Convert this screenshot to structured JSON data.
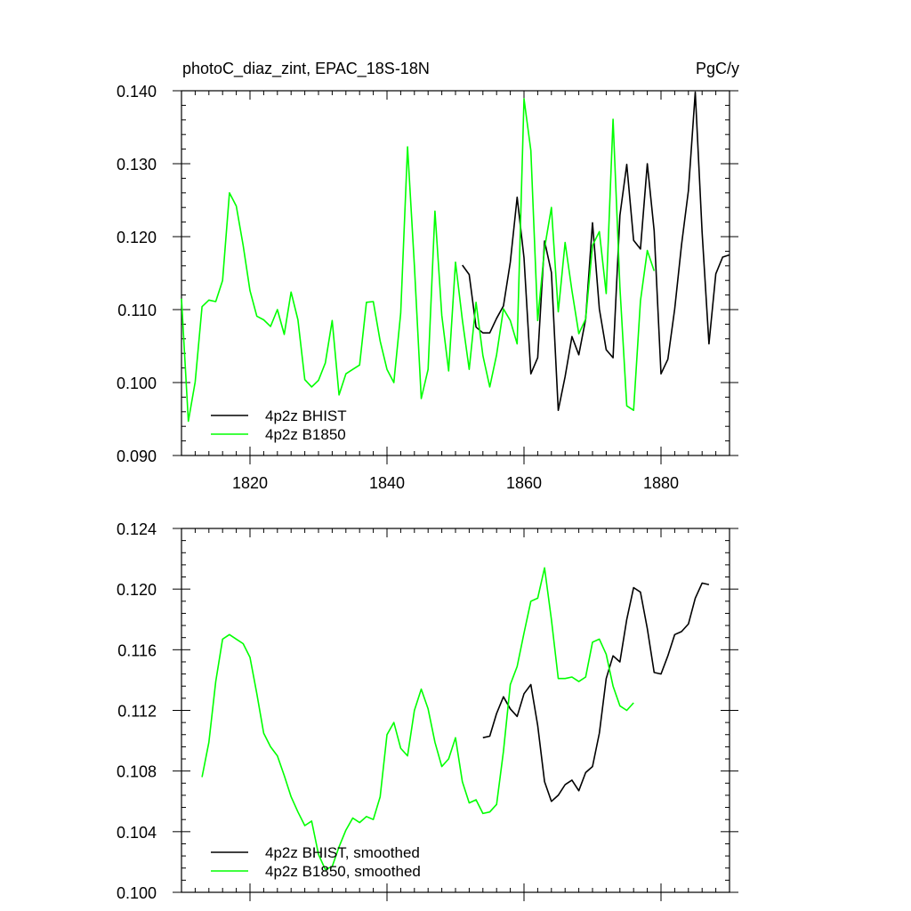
{
  "chart_data": [
    {
      "type": "line",
      "title_left": "photoC_diaz_zint, EPAC_18S-18N",
      "title_right": "PgC/y",
      "xlim": [
        1810,
        1890
      ],
      "ylim": [
        0.09,
        0.14
      ],
      "xticks": [
        1820,
        1840,
        1860,
        1880
      ],
      "yticks": [
        0.09,
        0.1,
        0.11,
        0.12,
        0.13,
        0.14
      ],
      "ytick_labels": [
        "0.090",
        "0.100",
        "0.110",
        "0.120",
        "0.130",
        "0.140"
      ],
      "show_xtick_labels": true,
      "legend_position": "bottom-left",
      "series": [
        {
          "name": "4p2z BHIST",
          "color": "#000000",
          "x0": 1851,
          "values": [
            0.1161,
            0.1148,
            0.1076,
            0.1068,
            0.1068,
            0.1088,
            0.1105,
            0.1165,
            0.1254,
            0.1171,
            0.1012,
            0.1034,
            0.1194,
            0.1151,
            0.0962,
            0.1008,
            0.1063,
            0.1038,
            0.1087,
            0.1219,
            0.1101,
            0.1045,
            0.1034,
            0.1229,
            0.1299,
            0.1195,
            0.1183,
            0.13,
            0.1208,
            0.1012,
            0.1032,
            0.1101,
            0.1189,
            0.1263,
            0.1398,
            0.1206,
            0.1053,
            0.1149,
            0.1172,
            0.1175
          ]
        },
        {
          "name": "4p2z B1850",
          "color": "#00ff00",
          "x0": 1810,
          "values": [
            0.1115,
            0.0947,
            0.1001,
            0.1104,
            0.1113,
            0.1111,
            0.114,
            0.126,
            0.1242,
            0.1188,
            0.1126,
            0.1091,
            0.1086,
            0.1077,
            0.11,
            0.1066,
            0.1124,
            0.1086,
            0.1004,
            0.0994,
            0.1003,
            0.1027,
            0.1085,
            0.0983,
            0.1012,
            0.1018,
            0.1024,
            0.111,
            0.1111,
            0.1057,
            0.1018,
            0.1,
            0.1095,
            0.1323,
            0.116,
            0.0978,
            0.1018,
            0.1235,
            0.1092,
            0.1016,
            0.1165,
            0.1086,
            0.1018,
            0.111,
            0.1037,
            0.0994,
            0.1038,
            0.1101,
            0.1085,
            0.1053,
            0.1389,
            0.1318,
            0.1085,
            0.1184,
            0.124,
            0.1097,
            0.1192,
            0.1126,
            0.1067,
            0.1087,
            0.1188,
            0.1207,
            0.1122,
            0.1361,
            0.1131,
            0.0968,
            0.0962,
            0.1112,
            0.1181,
            0.1153
          ]
        }
      ]
    },
    {
      "type": "line",
      "xlim": [
        1810,
        1890
      ],
      "ylim": [
        0.1,
        0.124
      ],
      "xticks": [
        1820,
        1840,
        1860,
        1880
      ],
      "yticks": [
        0.1,
        0.104,
        0.108,
        0.112,
        0.116,
        0.12,
        0.124
      ],
      "ytick_labels": [
        "0.100",
        "0.104",
        "0.108",
        "0.112",
        "0.116",
        "0.120",
        "0.124"
      ],
      "show_xtick_labels": false,
      "legend_position": "bottom-left",
      "series": [
        {
          "name": "4p2z BHIST, smoothed",
          "color": "#000000",
          "x0": 1854,
          "values": [
            0.1102,
            0.1103,
            0.1118,
            0.1129,
            0.1121,
            0.1116,
            0.1131,
            0.1137,
            0.111,
            0.1073,
            0.106,
            0.1064,
            0.1071,
            0.1074,
            0.1067,
            0.1079,
            0.1083,
            0.1105,
            0.1141,
            0.1156,
            0.1152,
            0.118,
            0.1201,
            0.1198,
            0.1174,
            0.1145,
            0.1144,
            0.1156,
            0.117,
            0.1172,
            0.1177,
            0.1194,
            0.1204,
            0.1203
          ]
        },
        {
          "name": "4p2z B1850, smoothed",
          "color": "#00ff00",
          "x0": 1813,
          "values": [
            0.1076,
            0.1099,
            0.1139,
            0.1167,
            0.117,
            0.1167,
            0.1164,
            0.1155,
            0.1131,
            0.1105,
            0.1096,
            0.109,
            0.1077,
            0.1063,
            0.1053,
            0.1044,
            0.1047,
            0.1025,
            0.1015,
            0.1017,
            0.103,
            0.1041,
            0.1049,
            0.1046,
            0.105,
            0.1048,
            0.1063,
            0.1104,
            0.1112,
            0.1095,
            0.109,
            0.112,
            0.1134,
            0.1121,
            0.1099,
            0.1083,
            0.1088,
            0.1102,
            0.1073,
            0.1059,
            0.1061,
            0.1052,
            0.1053,
            0.1058,
            0.1093,
            0.1137,
            0.1149,
            0.1171,
            0.1192,
            0.1194,
            0.1214,
            0.118,
            0.1141,
            0.1141,
            0.1142,
            0.1139,
            0.1142,
            0.1165,
            0.1167,
            0.1157,
            0.1136,
            0.1123,
            0.112,
            0.1125
          ]
        }
      ]
    }
  ]
}
